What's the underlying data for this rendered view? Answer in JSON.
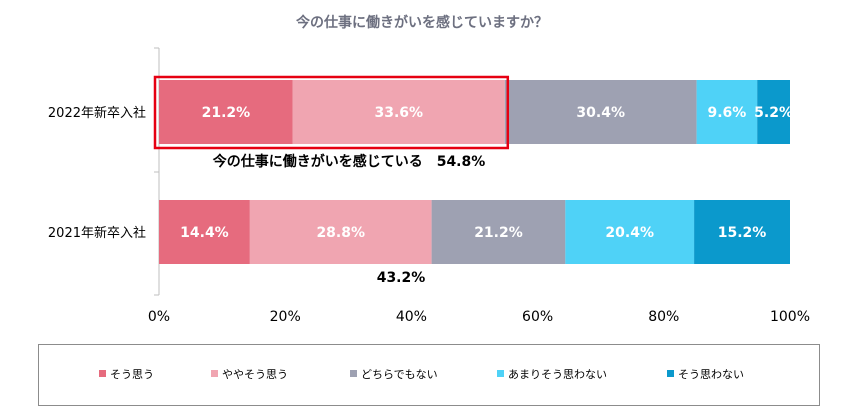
{
  "chart_data": {
    "type": "bar",
    "orientation": "horizontal",
    "stacked": "percent",
    "title": "今の仕事に働きがいを感じていますか？",
    "categories": [
      "2022年新卒入社",
      "2021年新卒入社"
    ],
    "series": [
      {
        "name": "そう思う",
        "color": "#e66b7e",
        "values": [
          21.2,
          14.4
        ],
        "labels": [
          "21.2%",
          "14.4%"
        ]
      },
      {
        "name": "ややそう思う",
        "color": "#f0a5b1",
        "values": [
          33.6,
          28.8
        ],
        "labels": [
          "33.6%",
          "28.8%"
        ]
      },
      {
        "name": "どちらでもない",
        "color": "#9ea1b2",
        "values": [
          30.4,
          21.2
        ],
        "labels": [
          "30.4%",
          "21.2%"
        ]
      },
      {
        "name": "あまりそう思わない",
        "color": "#4fd2f7",
        "values": [
          9.6,
          20.4
        ],
        "labels": [
          "9.6%",
          "20.4%"
        ]
      },
      {
        "name": "そう思わない",
        "color": "#0b99cc",
        "values": [
          5.2,
          15.2
        ],
        "labels": [
          "5.2%",
          "15.2%"
        ]
      }
    ],
    "xlim": [
      0,
      100
    ],
    "xticks": [
      "0%",
      "20%",
      "40%",
      "60%",
      "80%",
      "100%"
    ],
    "legend_position": "bottom",
    "annotations": [
      {
        "category": "2022年新卒入社",
        "text": "今の仕事に働きがいを感じている　54.8%",
        "highlight_series": [
          0,
          1
        ],
        "highlight_color": "#e60012"
      },
      {
        "category": "2021年新卒入社",
        "text": "43.2%"
      }
    ]
  }
}
